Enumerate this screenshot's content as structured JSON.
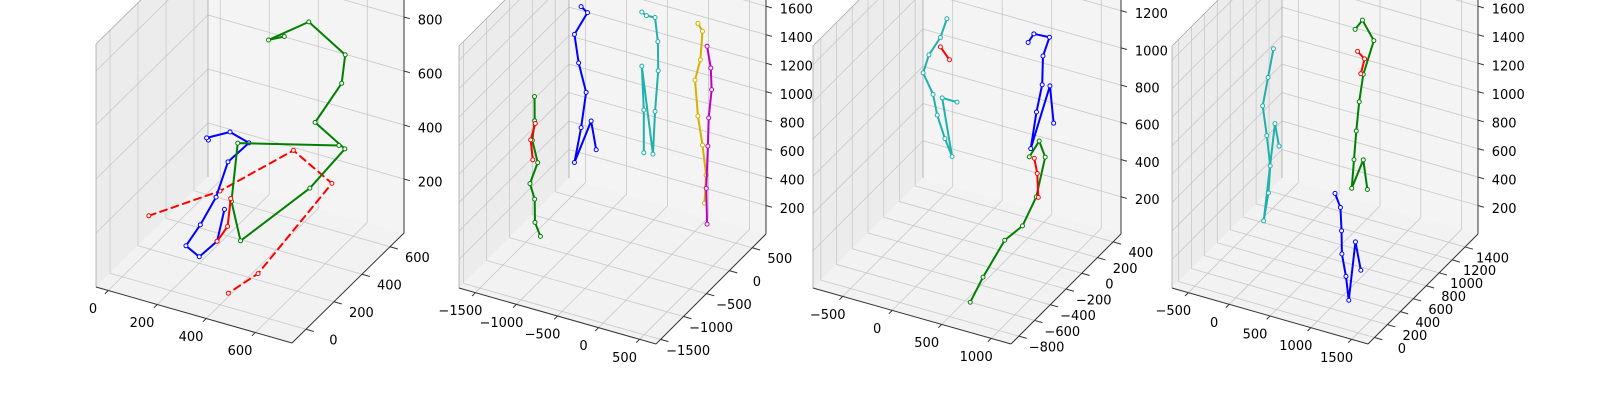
{
  "figure": {
    "background": "#ffffff",
    "pane_color": "#f2f2f2",
    "grid_color": "#c8c8c8"
  },
  "chart_data": [
    {
      "type": "scatter3d",
      "xlim": [
        -50,
        750
      ],
      "ylim": [
        -100,
        700
      ],
      "zlim": [
        0,
        900
      ],
      "x_ticks": [
        "0",
        "200",
        "400",
        "600"
      ],
      "y_ticks": [
        "0",
        "200",
        "400",
        "600"
      ],
      "z_ticks": [
        "200",
        "400",
        "600",
        "800"
      ],
      "skeletons": [
        {
          "color": "#ff0000",
          "style": "dashed",
          "points": [
            [
              40,
              120,
              175
            ],
            [
              250,
              260,
              250
            ],
            [
              430,
              470,
              340
            ],
            [
              610,
              430,
              285
            ],
            [
              480,
              130,
              70
            ],
            [
              410,
              40,
              25
            ]
          ]
        },
        {
          "color": "#0000ff",
          "points": [
            [
              180,
              300,
              400
            ],
            [
              150,
              340,
              380
            ],
            [
              240,
              350,
              420
            ],
            [
              300,
              380,
              380
            ],
            [
              260,
              300,
              340
            ],
            [
              240,
              250,
              230
            ],
            [
              210,
              190,
              150
            ],
            [
              180,
              140,
              90
            ],
            [
              240,
              130,
              70
            ],
            [
              290,
              170,
              120
            ],
            [
              280,
              240,
              200
            ]
          ]
        },
        {
          "color": "#008000",
          "points": [
            [
              330,
              580,
              680
            ],
            [
              300,
              520,
              690
            ],
            [
              430,
              580,
              760
            ],
            [
              590,
              560,
              690
            ],
            [
              610,
              500,
              620
            ],
            [
              530,
              450,
              480
            ],
            [
              640,
              470,
              400
            ],
            [
              560,
              360,
              290
            ],
            [
              380,
              180,
              140
            ],
            [
              320,
              220,
              250
            ],
            [
              300,
              300,
              420
            ],
            [
              610,
              480,
              400
            ]
          ]
        },
        {
          "color": "#ff0000",
          "points": [
            [
              290,
              170,
              120
            ],
            [
              310,
              210,
              160
            ],
            [
              300,
              250,
              240
            ]
          ]
        }
      ]
    },
    {
      "type": "scatter3d",
      "xlim": [
        -1700,
        700
      ],
      "ylim": [
        -1600,
        800
      ],
      "zlim": [
        0,
        1700
      ],
      "x_ticks": [
        "−1500",
        "−1000",
        "−500",
        "0",
        "500"
      ],
      "y_ticks": [
        "−1500",
        "−1000",
        "−500",
        "0",
        "500"
      ],
      "z_ticks": [
        "200",
        "400",
        "600",
        "800",
        "1000",
        "1200",
        "1400",
        "1600"
      ],
      "skeletons": [
        {
          "color": "#008000",
          "points": [
            [
              -1450,
              -400,
              1000
            ],
            [
              -1420,
              -450,
              850
            ],
            [
              -1460,
              -430,
              700
            ],
            [
              -1400,
              -420,
              550
            ],
            [
              -1450,
              -500,
              420
            ],
            [
              -1420,
              -450,
              300
            ],
            [
              -1400,
              -480,
              150
            ],
            [
              -1350,
              -450,
              50
            ]
          ]
        },
        {
          "color": "#ff0000",
          "points": [
            [
              -1430,
              -420,
              820
            ],
            [
              -1480,
              -430,
              700
            ],
            [
              -1460,
              -420,
              560
            ]
          ]
        },
        {
          "color": "#0000ff",
          "points": [
            [
              -1050,
              -100,
              1600
            ],
            [
              -1000,
              -50,
              1550
            ],
            [
              -1120,
              -120,
              1400
            ],
            [
              -1080,
              -100,
              1200
            ],
            [
              -1000,
              -80,
              1000
            ],
            [
              -1050,
              -100,
              750
            ],
            [
              -1120,
              -120,
              500
            ],
            [
              -950,
              -60,
              800
            ],
            [
              -900,
              -40,
              600
            ]
          ]
        },
        {
          "color": "#20b2aa",
          "points": [
            [
              -450,
              150,
              1580
            ],
            [
              -400,
              160,
              1560
            ],
            [
              -300,
              170,
              1560
            ],
            [
              -260,
              160,
              1400
            ],
            [
              -250,
              150,
              1200
            ],
            [
              -300,
              170,
              900
            ],
            [
              -320,
              160,
              600
            ],
            [
              -450,
              150,
              1200
            ],
            [
              -420,
              140,
              900
            ],
            [
              -420,
              140,
              600
            ]
          ]
        },
        {
          "color": "#d4b000",
          "points": [
            [
              150,
              300,
              1550
            ],
            [
              200,
              310,
              1500
            ],
            [
              180,
              300,
              1300
            ],
            [
              120,
              290,
              1150
            ],
            [
              150,
              300,
              900
            ],
            [
              200,
              310,
              700
            ],
            [
              250,
              300,
              500
            ],
            [
              230,
              300,
              300
            ]
          ]
        },
        {
          "color": "#c000c0",
          "points": [
            [
              250,
              320,
              1400
            ],
            [
              290,
              330,
              1250
            ],
            [
              300,
              330,
              1100
            ],
            [
              270,
              320,
              900
            ],
            [
              260,
              320,
              700
            ],
            [
              240,
              320,
              400
            ],
            [
              250,
              320,
              150
            ]
          ]
        }
      ]
    },
    {
      "type": "scatter3d",
      "xlim": [
        -800,
        1200
      ],
      "ylim": [
        -900,
        500
      ],
      "zlim": [
        0,
        1300
      ],
      "x_ticks": [
        "−500",
        "0",
        "500",
        "1000"
      ],
      "y_ticks": [
        "−800",
        "−600",
        "−400",
        "−200",
        "0",
        "200",
        "400"
      ],
      "z_ticks": [
        "200",
        "400",
        "600",
        "800",
        "1000",
        "1200"
      ],
      "skeletons": [
        {
          "color": "#20b2aa",
          "points": [
            [
              -400,
              300,
              1000
            ],
            [
              -450,
              280,
              900
            ],
            [
              -550,
              260,
              800
            ],
            [
              -600,
              250,
              700
            ],
            [
              -500,
              250,
              600
            ],
            [
              -450,
              240,
              500
            ],
            [
              -380,
              250,
              380
            ],
            [
              -300,
              240,
              300
            ],
            [
              -400,
              240,
              600
            ],
            [
              -250,
              240,
              600
            ]
          ]
        },
        {
          "color": "#ff0000",
          "points": [
            [
              -450,
              280,
              850
            ],
            [
              -350,
              270,
              800
            ]
          ]
        },
        {
          "color": "#0000ff",
          "points": [
            [
              500,
              200,
              1050
            ],
            [
              550,
              210,
              1100
            ],
            [
              700,
              220,
              1100
            ],
            [
              650,
              200,
              1000
            ],
            [
              650,
              190,
              850
            ],
            [
              600,
              180,
              700
            ],
            [
              550,
              170,
              500
            ],
            [
              720,
              200,
              850
            ],
            [
              750,
              210,
              650
            ]
          ]
        },
        {
          "color": "#008000",
          "points": [
            [
              750,
              -100,
              600
            ],
            [
              850,
              -100,
              700
            ],
            [
              950,
              -150,
              650
            ],
            [
              900,
              -200,
              450
            ],
            [
              800,
              -250,
              300
            ],
            [
              700,
              -350,
              250
            ],
            [
              600,
              -500,
              100
            ],
            [
              550,
              -600,
              0
            ]
          ]
        },
        {
          "color": "#ff0000",
          "points": [
            [
              800,
              -100,
              600
            ],
            [
              870,
              -150,
              550
            ],
            [
              920,
              -200,
              450
            ]
          ]
        }
      ]
    },
    {
      "type": "scatter3d",
      "xlim": [
        -700,
        1700
      ],
      "ylim": [
        -100,
        1600
      ],
      "zlim": [
        0,
        1700
      ],
      "x_ticks": [
        "−500",
        "0",
        "500",
        "1000",
        "1500"
      ],
      "y_ticks": [
        "0",
        "200",
        "400",
        "600",
        "800",
        "1000",
        "1200",
        "1400"
      ],
      "z_ticks": [
        "200",
        "400",
        "600",
        "800",
        "1000",
        "1200",
        "1400",
        "1600"
      ],
      "skeletons": [
        {
          "color": "#20b2aa",
          "points": [
            [
              -250,
              900,
              1300
            ],
            [
              -300,
              880,
              1100
            ],
            [
              -350,
              860,
              900
            ],
            [
              -300,
              860,
              700
            ],
            [
              -250,
              850,
              500
            ],
            [
              -280,
              860,
              300
            ],
            [
              -330,
              850,
              100
            ],
            [
              -200,
              860,
              800
            ],
            [
              -150,
              860,
              650
            ]
          ]
        },
        {
          "color": "#008000",
          "points": [
            [
              750,
              900,
              1600
            ],
            [
              800,
              950,
              1650
            ],
            [
              900,
              1000,
              1500
            ],
            [
              850,
              900,
              1300
            ],
            [
              800,
              900,
              1100
            ],
            [
              780,
              880,
              900
            ],
            [
              760,
              870,
              700
            ],
            [
              740,
              860,
              500
            ],
            [
              850,
              900,
              700
            ],
            [
              900,
              900,
              500
            ]
          ]
        },
        {
          "color": "#ff0000",
          "points": [
            [
              780,
              900,
              1450
            ],
            [
              850,
              920,
              1400
            ],
            [
              820,
              900,
              1300
            ]
          ]
        },
        {
          "color": "#0000ff",
          "points": [
            [
              900,
              400,
              700
            ],
            [
              950,
              420,
              600
            ],
            [
              980,
              400,
              450
            ],
            [
              1000,
              380,
              300
            ],
            [
              1050,
              380,
              150
            ],
            [
              1100,
              360,
              0
            ],
            [
              1150,
              400,
              400
            ],
            [
              1200,
              420,
              200
            ]
          ]
        }
      ]
    }
  ]
}
